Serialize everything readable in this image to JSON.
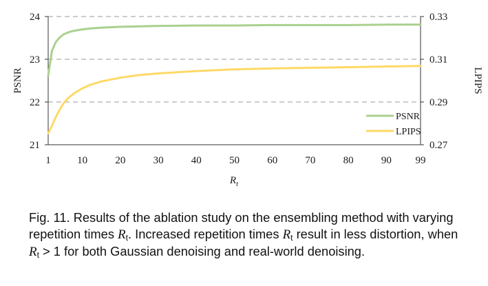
{
  "chart_data": {
    "type": "line",
    "xlabel": "R",
    "xlabel_subscript": "t",
    "ylabel_left": "PSNR",
    "ylabel_right": "LPIPS",
    "x_ticks": [
      1,
      10,
      20,
      30,
      40,
      50,
      60,
      70,
      80,
      90,
      99
    ],
    "y_left_ticks": [
      "21",
      "22",
      "23",
      "24"
    ],
    "y_right_ticks": [
      "0.27",
      "0.29",
      "0.31",
      "0.33"
    ],
    "xlim": [
      1,
      99
    ],
    "ylim_left": [
      21,
      24
    ],
    "ylim_right": [
      0.27,
      0.33
    ],
    "grid": "horizontal dashed",
    "legend_position": "bottom-right",
    "series": [
      {
        "name": "PSNR",
        "axis": "left",
        "color": "#a9d18e",
        "x": [
          1,
          2,
          3,
          4,
          5,
          6,
          7,
          8,
          10,
          12,
          15,
          20,
          25,
          30,
          40,
          50,
          60,
          70,
          80,
          90,
          99
        ],
        "y": [
          22.62,
          23.2,
          23.4,
          23.51,
          23.58,
          23.62,
          23.65,
          23.67,
          23.7,
          23.72,
          23.74,
          23.76,
          23.77,
          23.78,
          23.79,
          23.79,
          23.8,
          23.8,
          23.8,
          23.81,
          23.81
        ]
      },
      {
        "name": "LPIPS",
        "axis": "right",
        "color": "#ffd966",
        "x": [
          1,
          2,
          3,
          4,
          5,
          6,
          7,
          8,
          10,
          12,
          15,
          20,
          25,
          30,
          40,
          50,
          60,
          70,
          80,
          90,
          99
        ],
        "y": [
          0.2753,
          0.2789,
          0.2829,
          0.2864,
          0.2893,
          0.2914,
          0.2929,
          0.2943,
          0.2964,
          0.298,
          0.2996,
          0.3014,
          0.3026,
          0.3034,
          0.3045,
          0.3053,
          0.3057,
          0.306,
          0.3063,
          0.3066,
          0.3069
        ]
      }
    ]
  },
  "caption": {
    "part1": "Fig. 11.  Results of the ablation study on the ensembling method with varying repetition times ",
    "var_R": "R",
    "var_t": "t",
    "part2": ". Increased repetition times ",
    "part3": " result in less distortion, when ",
    "part4": " > 1",
    "part5": " for both Gaussian denoising and real-world denoising."
  }
}
